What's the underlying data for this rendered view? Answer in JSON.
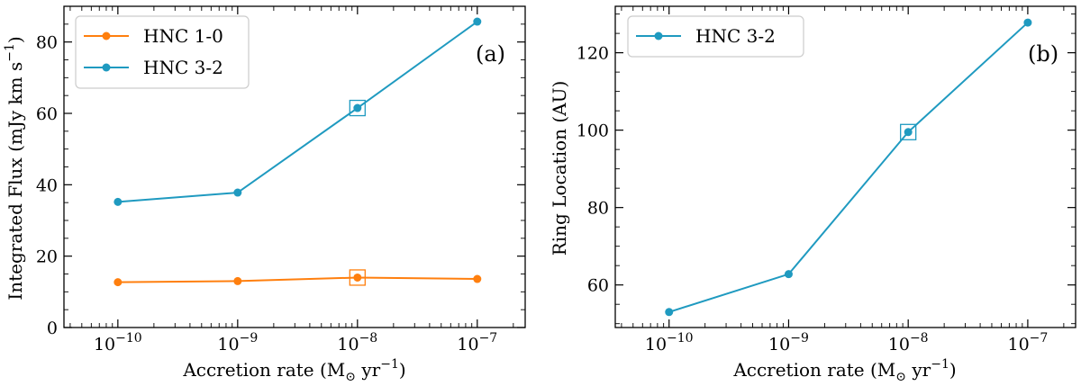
{
  "chart_data": [
    {
      "type": "line",
      "panel_label": "(a)",
      "xlabel": "Accretion rate (M",
      "xlabel_sub": "⊙",
      "xlabel_unit": " yr",
      "xlabel_exp": "−1",
      "xlabel_end": ")",
      "ylabel": "Integrated Flux (mJy km s",
      "ylabel_exp": "−1",
      "ylabel_end": ")",
      "xscale": "log",
      "xlim_log10": [
        -10.45,
        -6.6
      ],
      "ylim": [
        0,
        90
      ],
      "x_ticks": [
        {
          "log": -10,
          "base": "10",
          "exp": "−10"
        },
        {
          "log": -9,
          "base": "10",
          "exp": "−9"
        },
        {
          "log": -8,
          "base": "10",
          "exp": "−8"
        },
        {
          "log": -7,
          "base": "10",
          "exp": "−7"
        }
      ],
      "y_ticks": [
        0,
        20,
        40,
        60,
        80
      ],
      "legend_position": "top-left",
      "series": [
        {
          "name": "HNC 1-0",
          "color": "#ff7f0e",
          "x_log10": [
            -10,
            -9,
            -8,
            -7
          ],
          "values": [
            12.7,
            13.0,
            14.0,
            13.6
          ],
          "highlight_index": 2
        },
        {
          "name": "HNC 3-2",
          "color": "#1f9ac0",
          "x_log10": [
            -10,
            -9,
            -8,
            -7
          ],
          "values": [
            35.2,
            37.8,
            61.5,
            85.7
          ],
          "highlight_index": 2
        }
      ]
    },
    {
      "type": "line",
      "panel_label": "(b)",
      "xlabel": "Accretion rate (M",
      "xlabel_sub": "⊙",
      "xlabel_unit": " yr",
      "xlabel_exp": "−1",
      "xlabel_end": ")",
      "ylabel": "Ring Location (AU)",
      "xscale": "log",
      "xlim_log10": [
        -10.45,
        -6.6
      ],
      "ylim": [
        49,
        132
      ],
      "x_ticks": [
        {
          "log": -10,
          "base": "10",
          "exp": "−10"
        },
        {
          "log": -9,
          "base": "10",
          "exp": "−9"
        },
        {
          "log": -8,
          "base": "10",
          "exp": "−8"
        },
        {
          "log": -7,
          "base": "10",
          "exp": "−7"
        }
      ],
      "y_ticks": [
        60,
        80,
        100,
        120
      ],
      "legend_position": "top-left",
      "series": [
        {
          "name": "HNC 3-2",
          "color": "#1f9ac0",
          "x_log10": [
            -10,
            -9,
            -8,
            -7
          ],
          "values": [
            53.0,
            62.8,
            99.5,
            127.8
          ],
          "highlight_index": 2
        }
      ]
    }
  ]
}
